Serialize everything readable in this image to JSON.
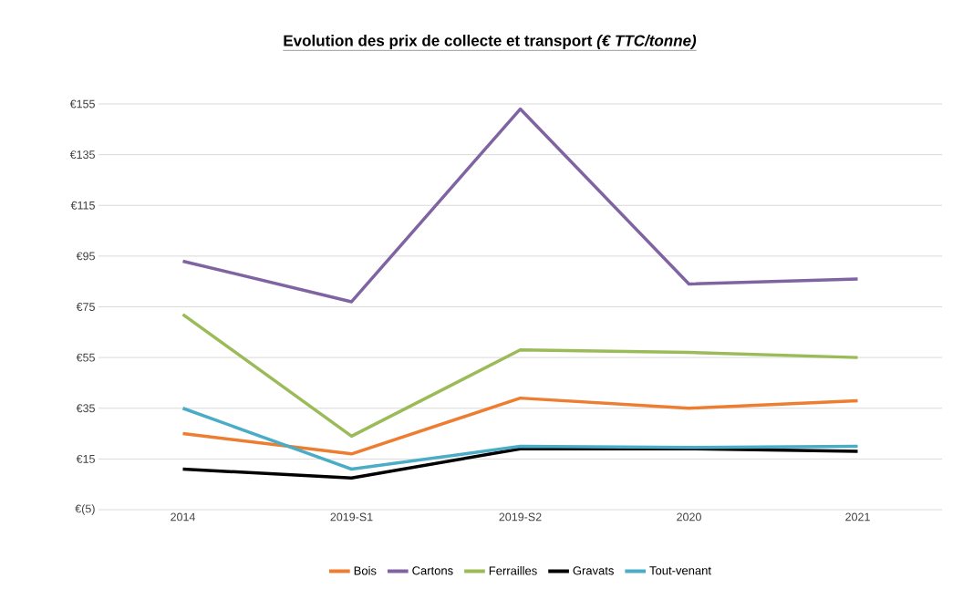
{
  "chart_data": {
    "type": "line",
    "title": "Evolution des prix de collecte et transport *(€ TTC/tonne)*",
    "categories": [
      "2014",
      "2019-S1",
      "2019-S2",
      "2020",
      "2021"
    ],
    "series": [
      {
        "name": "Bois",
        "color": "#ed7d31",
        "values": [
          25,
          17,
          39,
          35,
          38
        ]
      },
      {
        "name": "Cartons",
        "color": "#8064a2",
        "values": [
          93,
          77,
          153,
          84,
          86
        ]
      },
      {
        "name": "Ferrailles",
        "color": "#9bbb59",
        "values": [
          72,
          24,
          58,
          57,
          55
        ]
      },
      {
        "name": "Gravats",
        "color": "#000000",
        "values": [
          11,
          7.5,
          19,
          19,
          18
        ]
      },
      {
        "name": "Tout-venant",
        "color": "#4bacc6",
        "values": [
          35,
          11,
          20,
          19.5,
          20
        ]
      }
    ],
    "ylim": [
      -5,
      155
    ],
    "yticks": [
      {
        "value": -5,
        "label": "€(5)"
      },
      {
        "value": 15,
        "label": "€15"
      },
      {
        "value": 35,
        "label": "€35"
      },
      {
        "value": 55,
        "label": "€55"
      },
      {
        "value": 75,
        "label": "€75"
      },
      {
        "value": 95,
        "label": "€95"
      },
      {
        "value": 115,
        "label": "€115"
      },
      {
        "value": 135,
        "label": "€135"
      },
      {
        "value": 155,
        "label": "€155"
      }
    ],
    "grid": "y",
    "legend": "bottom",
    "marker": "none",
    "line_style": "solid"
  }
}
